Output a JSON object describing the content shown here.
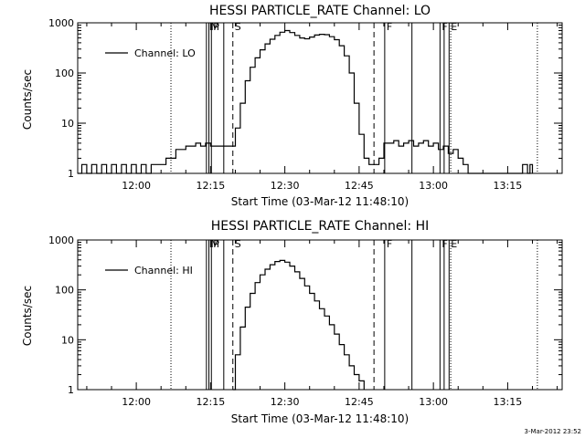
{
  "timestamp": "3-Mar-2012 23:52",
  "chart_data": [
    {
      "type": "line",
      "title": "HESSI PARTICLE_RATE Channel: LO",
      "xlabel": "Start Time (03-Mar-12 11:48:10)",
      "ylabel": "Counts/sec",
      "y_scale": "log",
      "xlim": [
        "11:48:10",
        "13:26:00"
      ],
      "ylim": [
        1,
        1000
      ],
      "x_ticks": [
        "12:00",
        "12:15",
        "12:30",
        "12:45",
        "13:00",
        "13:15"
      ],
      "y_ticks": [
        "1",
        "10",
        "100",
        "1000"
      ],
      "legend": {
        "placement": "top-left",
        "entries": [
          "Channel: LO"
        ]
      },
      "markers": [
        {
          "time": "12:19:30",
          "label": "S",
          "style": "dashed"
        },
        {
          "time": "12:48:00",
          "label": "",
          "style": "dashed"
        },
        {
          "time": "12:07:00",
          "label": "",
          "style": "dotted"
        },
        {
          "time": "13:03:30",
          "label": "",
          "style": "dotted"
        },
        {
          "time": "13:21:00",
          "label": "",
          "style": "dotted"
        },
        {
          "time": "12:14:10",
          "label": "",
          "style": "solid"
        },
        {
          "time": "12:14:40",
          "label": "M",
          "style": "solid"
        },
        {
          "time": "12:15:10",
          "label": "P",
          "style": "solid"
        },
        {
          "time": "12:17:40",
          "label": "",
          "style": "solid"
        },
        {
          "time": "12:50:10",
          "label": "F",
          "style": "solid"
        },
        {
          "time": "12:55:40",
          "label": "",
          "style": "solid"
        },
        {
          "time": "13:01:20",
          "label": "F",
          "style": "solid"
        },
        {
          "time": "13:02:10",
          "label": "",
          "style": "solid"
        },
        {
          "time": "13:03:10",
          "label": "E",
          "style": "solid"
        }
      ],
      "series": [
        {
          "name": "Channel: LO",
          "points": [
            [
              "11:48:10",
              1
            ],
            [
              "11:49:00",
              1.5
            ],
            [
              "11:50:00",
              1
            ],
            [
              "11:51:00",
              1.5
            ],
            [
              "11:52:00",
              1
            ],
            [
              "11:53:00",
              1.5
            ],
            [
              "11:54:00",
              1
            ],
            [
              "11:55:00",
              1.5
            ],
            [
              "11:56:00",
              1
            ],
            [
              "11:57:00",
              1.5
            ],
            [
              "11:58:00",
              1
            ],
            [
              "11:59:00",
              1.5
            ],
            [
              "12:00:00",
              1
            ],
            [
              "12:01:00",
              1.5
            ],
            [
              "12:02:00",
              1
            ],
            [
              "12:03:00",
              1.5
            ],
            [
              "12:04:00",
              1.5
            ],
            [
              "12:05:00",
              1.5
            ],
            [
              "12:06:00",
              2
            ],
            [
              "12:07:00",
              2
            ],
            [
              "12:08:00",
              3
            ],
            [
              "12:09:00",
              3
            ],
            [
              "12:10:00",
              3.5
            ],
            [
              "12:11:00",
              3.5
            ],
            [
              "12:12:00",
              4
            ],
            [
              "12:13:00",
              3.5
            ],
            [
              "12:14:00",
              4
            ],
            [
              "12:15:00",
              3.5
            ],
            [
              "12:16:00",
              3.5
            ],
            [
              "12:17:00",
              3.5
            ],
            [
              "12:18:00",
              3.5
            ],
            [
              "12:19:00",
              3.5
            ],
            [
              "12:19:30",
              3.5
            ],
            [
              "12:20:00",
              8
            ],
            [
              "12:21:00",
              25
            ],
            [
              "12:22:00",
              70
            ],
            [
              "12:23:00",
              130
            ],
            [
              "12:24:00",
              200
            ],
            [
              "12:25:00",
              290
            ],
            [
              "12:26:00",
              380
            ],
            [
              "12:27:00",
              470
            ],
            [
              "12:28:00",
              560
            ],
            [
              "12:29:00",
              650
            ],
            [
              "12:30:00",
              700
            ],
            [
              "12:31:00",
              640
            ],
            [
              "12:32:00",
              560
            ],
            [
              "12:33:00",
              500
            ],
            [
              "12:34:00",
              480
            ],
            [
              "12:35:00",
              520
            ],
            [
              "12:36:00",
              570
            ],
            [
              "12:37:00",
              590
            ],
            [
              "12:38:00",
              580
            ],
            [
              "12:39:00",
              530
            ],
            [
              "12:40:00",
              460
            ],
            [
              "12:41:00",
              350
            ],
            [
              "12:42:00",
              220
            ],
            [
              "12:43:00",
              100
            ],
            [
              "12:44:00",
              25
            ],
            [
              "12:45:00",
              6
            ],
            [
              "12:46:00",
              2
            ],
            [
              "12:47:00",
              1.5
            ],
            [
              "12:48:00",
              1.5
            ],
            [
              "12:49:00",
              2
            ],
            [
              "12:50:00",
              4
            ],
            [
              "12:51:00",
              4
            ],
            [
              "12:52:00",
              4.5
            ],
            [
              "12:53:00",
              3.5
            ],
            [
              "12:54:00",
              4
            ],
            [
              "12:55:00",
              4.5
            ],
            [
              "12:56:00",
              3.5
            ],
            [
              "12:57:00",
              4
            ],
            [
              "12:58:00",
              4.5
            ],
            [
              "12:59:00",
              3.5
            ],
            [
              "13:00:00",
              4
            ],
            [
              "13:01:00",
              3
            ],
            [
              "13:02:00",
              3.5
            ],
            [
              "13:03:00",
              2.5
            ],
            [
              "13:04:00",
              3
            ],
            [
              "13:05:00",
              2
            ],
            [
              "13:06:00",
              1.5
            ],
            [
              "13:07:00",
              1
            ],
            [
              "13:08:00",
              1
            ],
            [
              "13:17:00",
              1
            ],
            [
              "13:18:00",
              1.5
            ],
            [
              "13:19:00",
              1
            ],
            [
              "13:19:30",
              1.5
            ],
            [
              "13:20:00",
              1
            ]
          ]
        }
      ]
    },
    {
      "type": "line",
      "title": "HESSI PARTICLE_RATE Channel: HI",
      "xlabel": "Start Time (03-Mar-12 11:48:10)",
      "ylabel": "Counts/sec",
      "y_scale": "log",
      "xlim": [
        "11:48:10",
        "13:26:00"
      ],
      "ylim": [
        1,
        1000
      ],
      "x_ticks": [
        "12:00",
        "12:15",
        "12:30",
        "12:45",
        "13:00",
        "13:15"
      ],
      "y_ticks": [
        "1",
        "10",
        "100",
        "1000"
      ],
      "legend": {
        "placement": "top-left",
        "entries": [
          "Channel: HI"
        ]
      },
      "markers": [
        {
          "time": "12:19:30",
          "label": "S",
          "style": "dashed"
        },
        {
          "time": "12:48:00",
          "label": "",
          "style": "dashed"
        },
        {
          "time": "12:07:00",
          "label": "",
          "style": "dotted"
        },
        {
          "time": "13:03:30",
          "label": "",
          "style": "dotted"
        },
        {
          "time": "13:21:00",
          "label": "",
          "style": "dotted"
        },
        {
          "time": "12:14:10",
          "label": "",
          "style": "solid"
        },
        {
          "time": "12:14:40",
          "label": "M",
          "style": "solid"
        },
        {
          "time": "12:15:10",
          "label": "P",
          "style": "solid"
        },
        {
          "time": "12:17:40",
          "label": "",
          "style": "solid"
        },
        {
          "time": "12:50:10",
          "label": "F",
          "style": "solid"
        },
        {
          "time": "12:55:40",
          "label": "",
          "style": "solid"
        },
        {
          "time": "13:01:20",
          "label": "F",
          "style": "solid"
        },
        {
          "time": "13:02:10",
          "label": "",
          "style": "solid"
        },
        {
          "time": "13:03:10",
          "label": "E",
          "style": "solid"
        }
      ],
      "series": [
        {
          "name": "Channel: HI",
          "points": [
            [
              "12:19:30",
              1
            ],
            [
              "12:20:00",
              5
            ],
            [
              "12:21:00",
              18
            ],
            [
              "12:22:00",
              45
            ],
            [
              "12:23:00",
              85
            ],
            [
              "12:24:00",
              140
            ],
            [
              "12:25:00",
              200
            ],
            [
              "12:26:00",
              260
            ],
            [
              "12:27:00",
              320
            ],
            [
              "12:28:00",
              370
            ],
            [
              "12:29:00",
              390
            ],
            [
              "12:30:00",
              360
            ],
            [
              "12:31:00",
              300
            ],
            [
              "12:32:00",
              230
            ],
            [
              "12:33:00",
              170
            ],
            [
              "12:34:00",
              120
            ],
            [
              "12:35:00",
              85
            ],
            [
              "12:36:00",
              60
            ],
            [
              "12:37:00",
              42
            ],
            [
              "12:38:00",
              30
            ],
            [
              "12:39:00",
              20
            ],
            [
              "12:40:00",
              13
            ],
            [
              "12:41:00",
              8
            ],
            [
              "12:42:00",
              5
            ],
            [
              "12:43:00",
              3
            ],
            [
              "12:44:00",
              2
            ],
            [
              "12:45:00",
              1.5
            ],
            [
              "12:46:00",
              1
            ]
          ]
        }
      ]
    }
  ]
}
